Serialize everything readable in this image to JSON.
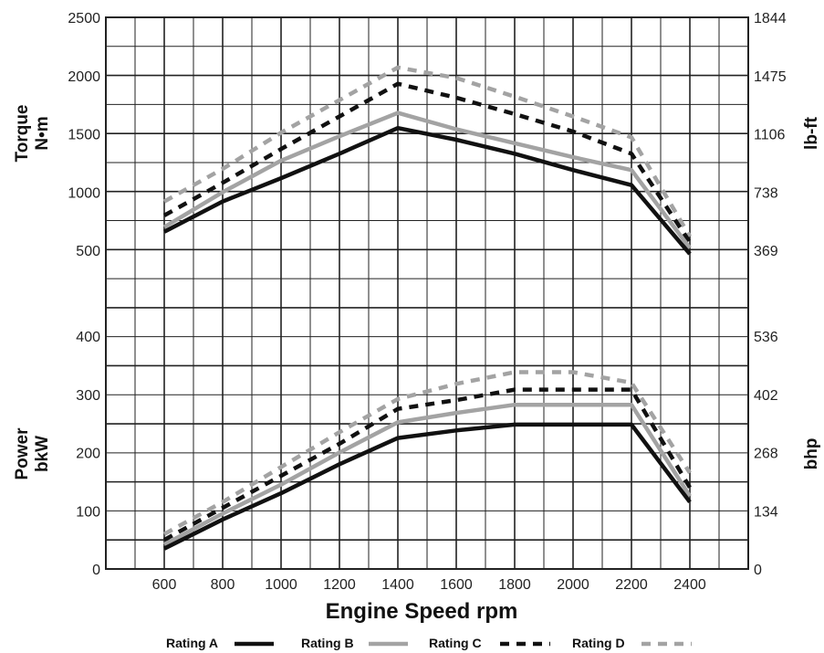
{
  "chart_data": [
    {
      "type": "line",
      "panel": "torque",
      "ylabel_line1": "Torque",
      "ylabel_line2": "N•m",
      "ylabel_right": "lb-ft",
      "x": [
        600,
        800,
        1000,
        1200,
        1400,
        1600,
        1800,
        2000,
        2200,
        2400
      ],
      "xlim": [
        400,
        2600
      ],
      "ylim": [
        0,
        2500
      ],
      "y_tick_values": [
        500,
        1000,
        1500,
        2000,
        2500
      ],
      "y_tick_labels": [
        "500",
        "1000",
        "1500",
        "2000",
        "2500"
      ],
      "y_right_tick_values": [
        500,
        1000,
        1500,
        2000,
        2500
      ],
      "y_right_tick_labels": [
        "369",
        "738",
        "1106",
        "1475",
        "1844"
      ],
      "series": [
        {
          "name": "Rating A",
          "x": [
            600,
            800,
            1000,
            1200,
            1400,
            1600,
            1800,
            2000,
            2200,
            2400
          ],
          "values": [
            660,
            920,
            1120,
            1330,
            1550,
            1450,
            1330,
            1190,
            1060,
            470
          ]
        },
        {
          "name": "Rating B",
          "x": [
            600,
            800,
            1000,
            1200,
            1400,
            1600,
            1800,
            2000,
            2200,
            2400
          ],
          "values": [
            700,
            1000,
            1270,
            1480,
            1680,
            1540,
            1420,
            1300,
            1190,
            520
          ]
        },
        {
          "name": "Rating C",
          "x": [
            600,
            800,
            1000,
            1200,
            1400,
            1600,
            1800,
            2000,
            2200,
            2400
          ],
          "values": [
            800,
            1080,
            1370,
            1650,
            1930,
            1810,
            1670,
            1520,
            1330,
            570
          ]
        },
        {
          "name": "Rating D",
          "x": [
            600,
            800,
            1000,
            1200,
            1400,
            1600,
            1800,
            2000,
            2200,
            2400
          ],
          "values": [
            920,
            1200,
            1510,
            1790,
            2070,
            1980,
            1820,
            1650,
            1470,
            620
          ]
        }
      ]
    },
    {
      "type": "line",
      "panel": "power",
      "ylabel_line1": "Power",
      "ylabel_line2": "bkW",
      "ylabel_right": "bhp",
      "x": [
        600,
        800,
        1000,
        1200,
        1400,
        1600,
        1800,
        2000,
        2200,
        2400
      ],
      "xlim": [
        400,
        2600
      ],
      "ylim": [
        0,
        400
      ],
      "y_tick_values": [
        0,
        100,
        200,
        300,
        400
      ],
      "y_tick_labels": [
        "0",
        "100",
        "200",
        "300",
        "400"
      ],
      "y_right_tick_values": [
        0,
        100,
        200,
        300,
        400
      ],
      "y_right_tick_labels": [
        "0",
        "134",
        "268",
        "402",
        "536"
      ],
      "series": [
        {
          "name": "Rating A",
          "x": [
            600,
            800,
            1000,
            1200,
            1400,
            1600,
            1800,
            2000,
            2200,
            2400
          ],
          "values": [
            35,
            85,
            130,
            180,
            225,
            238,
            248,
            248,
            248,
            115
          ]
        },
        {
          "name": "Rating B",
          "x": [
            600,
            800,
            1000,
            1200,
            1400,
            1600,
            1800,
            2000,
            2200,
            2400
          ],
          "values": [
            42,
            95,
            145,
            200,
            252,
            268,
            282,
            282,
            282,
            125
          ]
        },
        {
          "name": "Rating C",
          "x": [
            600,
            800,
            1000,
            1200,
            1400,
            1600,
            1800,
            2000,
            2200,
            2400
          ],
          "values": [
            50,
            105,
            160,
            215,
            275,
            290,
            308,
            308,
            308,
            140
          ]
        },
        {
          "name": "Rating D",
          "x": [
            600,
            800,
            1000,
            1200,
            1400,
            1600,
            1800,
            2000,
            2200,
            2400
          ],
          "values": [
            60,
            115,
            175,
            235,
            292,
            318,
            338,
            338,
            320,
            165
          ]
        }
      ]
    }
  ],
  "x_axis": {
    "label": "Engine Speed rpm",
    "ticks": [
      600,
      800,
      1000,
      1200,
      1400,
      1600,
      1800,
      2000,
      2200,
      2400
    ],
    "grid": true
  },
  "legend": {
    "placement": "bottom",
    "items": [
      {
        "name": "Rating A",
        "color": "#111111",
        "dash": "solid"
      },
      {
        "name": "Rating B",
        "color": "#a3a3a3",
        "dash": "solid"
      },
      {
        "name": "Rating C",
        "color": "#111111",
        "dash": "dashed"
      },
      {
        "name": "Rating D",
        "color": "#a3a3a3",
        "dash": "dashed"
      }
    ]
  },
  "colors": {
    "rating_a": "#111111",
    "rating_b": "#a3a3a3",
    "rating_c": "#111111",
    "rating_d": "#a3a3a3",
    "grid": "#222222"
  }
}
